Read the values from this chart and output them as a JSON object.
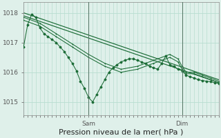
{
  "bg_color": "#dff0ea",
  "grid_color": "#b8ddd0",
  "line_color": "#1a6b35",
  "xlabel": "Pression niveau de la mer( hPa )",
  "xlabel_fontsize": 8,
  "yticks": [
    1015,
    1016,
    1017,
    1018
  ],
  "ylim": [
    1014.55,
    1018.35
  ],
  "xlim": [
    0,
    48
  ],
  "sam_x": 16,
  "dim_x": 39,
  "tick_labels_fontsize": 6.5,
  "line1_x": [
    0,
    1,
    2,
    3,
    4,
    5,
    6,
    7,
    8,
    9,
    10,
    11,
    12,
    13,
    14,
    15,
    16,
    17,
    18,
    19,
    20,
    21,
    22,
    23,
    24,
    25,
    26,
    27,
    28,
    29,
    30,
    31,
    32,
    33,
    34,
    35,
    36,
    37,
    38,
    39,
    40,
    41,
    42,
    43,
    44,
    45,
    46,
    47,
    48
  ],
  "line1_y": [
    1016.85,
    1017.6,
    1017.95,
    1017.85,
    1017.5,
    1017.3,
    1017.2,
    1017.1,
    1017.0,
    1016.85,
    1016.7,
    1016.5,
    1016.3,
    1016.05,
    1015.7,
    1015.45,
    1015.15,
    1015.0,
    1015.25,
    1015.5,
    1015.75,
    1016.0,
    1016.15,
    1016.25,
    1016.35,
    1016.4,
    1016.45,
    1016.45,
    1016.4,
    1016.35,
    1016.3,
    1016.2,
    1016.15,
    1016.1,
    1016.3,
    1016.55,
    1016.25,
    1016.2,
    1016.1,
    1016.05,
    1015.9,
    1015.85,
    1015.8,
    1015.75,
    1015.72,
    1015.7,
    1015.68,
    1015.65,
    1015.62
  ],
  "line2_x": [
    0,
    4,
    8,
    12,
    16,
    20,
    24,
    28,
    32,
    36,
    38,
    39,
    40,
    42,
    44,
    46,
    48
  ],
  "line2_y": [
    1017.75,
    1017.55,
    1017.2,
    1016.85,
    1016.5,
    1016.2,
    1016.0,
    1016.1,
    1016.3,
    1016.5,
    1016.35,
    1016.1,
    1015.95,
    1015.95,
    1015.85,
    1015.75,
    1015.65
  ],
  "line3_x": [
    0,
    4,
    8,
    12,
    16,
    20,
    24,
    28,
    32,
    36,
    38,
    39,
    40,
    42,
    44,
    46,
    48
  ],
  "line3_y": [
    1017.85,
    1017.65,
    1017.3,
    1016.95,
    1016.6,
    1016.3,
    1016.1,
    1016.2,
    1016.4,
    1016.6,
    1016.45,
    1016.2,
    1016.0,
    1016.0,
    1015.9,
    1015.8,
    1015.7
  ],
  "line4_x": [
    0,
    48
  ],
  "line4_y": [
    1017.9,
    1015.65
  ],
  "line5_x": [
    0,
    48
  ],
  "line5_y": [
    1018.0,
    1015.75
  ],
  "n_xticks": 48
}
